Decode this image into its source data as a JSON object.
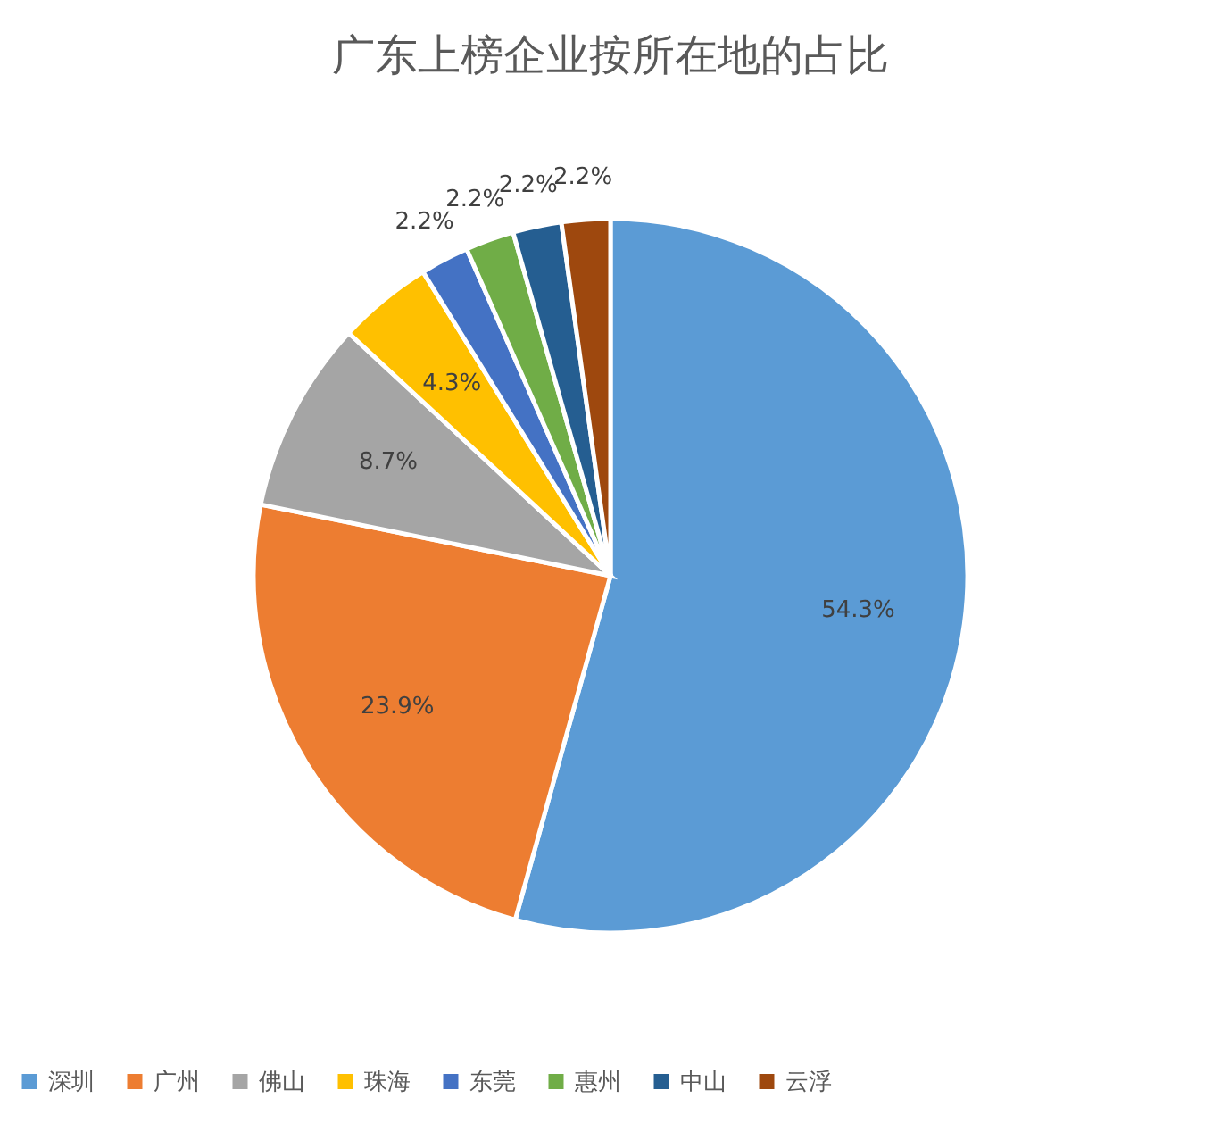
{
  "chart_data": {
    "type": "pie",
    "title": "广东上榜企业按所在地的占比",
    "categories": [
      "深圳",
      "广州",
      "佛山",
      "珠海",
      "东莞",
      "惠州",
      "中山",
      "云浮"
    ],
    "values": [
      54.3,
      23.9,
      8.7,
      4.3,
      2.2,
      2.2,
      2.2,
      2.2
    ],
    "value_labels": [
      "54.3%",
      "23.9%",
      "8.7%",
      "4.3%",
      "2.2%",
      "2.2%",
      "2.2%",
      "2.2%"
    ],
    "colors": [
      "#5b9bd5",
      "#ed7d31",
      "#a5a5a5",
      "#ffc000",
      "#4472c4",
      "#70ad47",
      "#255e91",
      "#9e480e"
    ],
    "legend": "bottom"
  }
}
